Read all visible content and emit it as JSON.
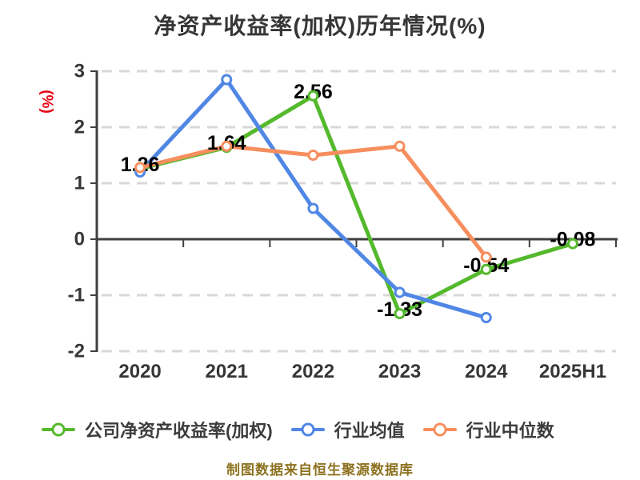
{
  "page": {
    "title": "净资产收益率(加权)历年情况(%)",
    "y_axis_label": "(%)",
    "footer_note": "制图数据来自恒生聚源数据库"
  },
  "colors": {
    "background": "#ffffff",
    "title_text": "#363636",
    "axis_line": "#3f3f3f",
    "tick_text": "#363636",
    "data_label_text": "#000000",
    "gridline": "#d8d8d8",
    "y_axis_name_text": "#e60012",
    "footer_text": "#8d7220",
    "legend_text": "#3c3c3c",
    "series_company": "#54b92c",
    "series_industry_mean": "#5087e5",
    "series_industry_median": "#f78e5e"
  },
  "legend": {
    "items": [
      {
        "label": "公司净资产收益率(加权)",
        "color": "#54b92c"
      },
      {
        "label": "行业均值",
        "color": "#5087e5"
      },
      {
        "label": "行业中位数",
        "color": "#f78e5e"
      }
    ]
  },
  "chart_data": {
    "type": "line",
    "title": "净资产收益率(加权)历年情况(%)",
    "xlabel": "",
    "ylabel": "(%)",
    "categories": [
      "2020",
      "2021",
      "2022",
      "2023",
      "2024",
      "2025H1"
    ],
    "series": [
      {
        "name": "公司净资产收益率(加权)",
        "color": "#54b92c",
        "values": [
          1.26,
          1.64,
          2.56,
          -1.33,
          -0.54,
          -0.08
        ],
        "data_labels": [
          "1.26",
          "1.64",
          "2.56",
          "-1.33",
          "-0.54",
          "-0.08"
        ]
      },
      {
        "name": "行业均值",
        "color": "#5087e5",
        "values": [
          1.2,
          2.85,
          0.55,
          -0.95,
          -1.4,
          null
        ],
        "data_labels": null
      },
      {
        "name": "行业中位数",
        "color": "#f78e5e",
        "values": [
          1.28,
          1.66,
          1.5,
          1.66,
          -0.32,
          null
        ],
        "data_labels": null
      }
    ],
    "ylim": [
      -2,
      3
    ],
    "y_ticks": [
      3,
      2,
      1,
      0,
      -1,
      -2
    ],
    "grid": "horizontal-dashed",
    "legend_position": "bottom",
    "marker": "circle-white-fill",
    "note": "制图数据来自恒生聚源数据库"
  }
}
